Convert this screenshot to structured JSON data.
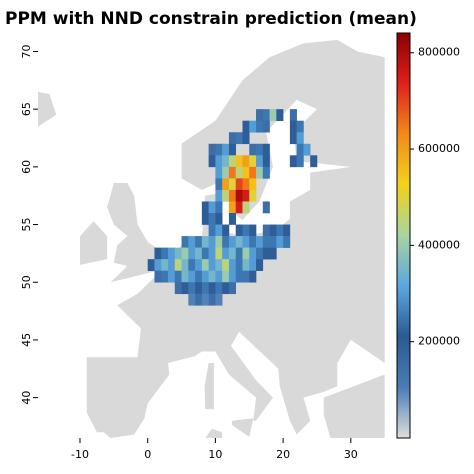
{
  "chart_data": {
    "type": "raster",
    "title": "PPM with NND constrain prediction (mean)",
    "x": [
      16,
      17,
      18,
      19,
      21,
      14,
      15,
      16,
      17,
      21,
      22,
      12,
      13,
      14,
      21,
      22,
      9,
      10,
      11,
      12,
      15,
      16,
      17,
      22,
      23,
      9,
      10,
      11,
      12,
      13,
      14,
      15,
      16,
      17,
      21,
      22,
      24,
      10,
      11,
      12,
      13,
      14,
      15,
      16,
      17,
      10,
      11,
      12,
      13,
      14,
      15,
      10,
      11,
      12,
      13,
      14,
      15,
      8,
      9,
      10,
      12,
      13,
      14,
      17,
      8,
      9,
      10,
      12,
      9,
      10,
      11,
      13,
      14,
      15,
      17,
      18,
      19,
      20,
      5,
      6,
      7,
      8,
      9,
      10,
      11,
      12,
      13,
      14,
      15,
      16,
      17,
      18,
      19,
      20,
      1,
      2,
      3,
      4,
      5,
      6,
      7,
      8,
      9,
      10,
      11,
      12,
      13,
      14,
      15,
      16,
      17,
      18,
      0,
      1,
      2,
      3,
      4,
      5,
      6,
      7,
      8,
      9,
      10,
      11,
      12,
      13,
      14,
      15,
      16,
      1,
      2,
      3,
      4,
      5,
      6,
      7,
      8,
      9,
      10,
      11,
      12,
      13,
      14,
      15,
      4,
      5,
      6,
      7,
      8,
      9,
      10,
      11,
      12,
      6,
      7,
      8,
      9,
      10
    ],
    "y": [
      64,
      64,
      64,
      64,
      64,
      63,
      63,
      63,
      63,
      63,
      63,
      62,
      62,
      62,
      62,
      62,
      61,
      61,
      61,
      61,
      61,
      61,
      61,
      61,
      61,
      60,
      60,
      60,
      60,
      60,
      60,
      60,
      60,
      60,
      60,
      60,
      60,
      59,
      59,
      59,
      59,
      59,
      59,
      59,
      59,
      58,
      58,
      58,
      58,
      58,
      58,
      57,
      57,
      57,
      57,
      57,
      57,
      56,
      56,
      56,
      56,
      56,
      56,
      56,
      55,
      55,
      55,
      55,
      54,
      54,
      54,
      54,
      54,
      54,
      54,
      54,
      54,
      54,
      53,
      53,
      53,
      53,
      53,
      53,
      53,
      53,
      53,
      53,
      53,
      53,
      53,
      53,
      53,
      53,
      52,
      52,
      52,
      52,
      52,
      52,
      52,
      52,
      52,
      52,
      52,
      52,
      52,
      52,
      52,
      52,
      52,
      52,
      51,
      51,
      51,
      51,
      51,
      51,
      51,
      51,
      51,
      51,
      51,
      51,
      51,
      51,
      51,
      51,
      51,
      50,
      50,
      50,
      50,
      50,
      50,
      50,
      50,
      50,
      50,
      50,
      50,
      50,
      50,
      50,
      49,
      49,
      49,
      49,
      49,
      49,
      49,
      49,
      49,
      48,
      48,
      48,
      48,
      48
    ],
    "values": [
      150000,
      250000,
      400000,
      200000,
      150000,
      200000,
      300000,
      250000,
      150000,
      200000,
      250000,
      150000,
      250000,
      200000,
      200000,
      300000,
      150000,
      250000,
      300000,
      200000,
      150000,
      250000,
      200000,
      250000,
      300000,
      200000,
      300000,
      350000,
      450000,
      550000,
      600000,
      500000,
      300000,
      200000,
      200000,
      250000,
      200000,
      300000,
      400000,
      650000,
      450000,
      550000,
      650000,
      400000,
      250000,
      250000,
      600000,
      500000,
      700000,
      650000,
      550000,
      300000,
      450000,
      650000,
      800000,
      750000,
      500000,
      200000,
      300000,
      250000,
      600000,
      750000,
      450000,
      150000,
      200000,
      250000,
      200000,
      200000,
      250000,
      300000,
      200000,
      200000,
      250000,
      200000,
      150000,
      200000,
      250000,
      200000,
      250000,
      300000,
      250000,
      350000,
      300000,
      400000,
      250000,
      300000,
      350000,
      300000,
      250000,
      300000,
      250000,
      250000,
      300000,
      250000,
      200000,
      250000,
      300000,
      350000,
      400000,
      300000,
      350000,
      250000,
      300000,
      450000,
      300000,
      350000,
      250000,
      400000,
      300000,
      250000,
      200000,
      200000,
      200000,
      300000,
      350000,
      300000,
      450000,
      350000,
      250000,
      300000,
      400000,
      300000,
      350000,
      450000,
      300000,
      250000,
      350000,
      300000,
      200000,
      150000,
      250000,
      300000,
      250000,
      350000,
      300000,
      250000,
      300000,
      350000,
      300000,
      400000,
      300000,
      250000,
      250000,
      200000,
      150000,
      200000,
      250000,
      200000,
      250000,
      200000,
      250000,
      200000,
      150000,
      100000,
      150000,
      100000,
      150000,
      100000
    ],
    "xlim": [
      -16.2,
      34.9
    ],
    "ylim": [
      36.5,
      71.6
    ],
    "xticks": [
      -10,
      0,
      10,
      20,
      30
    ],
    "yticks": [
      40,
      45,
      50,
      55,
      60,
      65,
      70
    ],
    "clim": [
      0,
      841000
    ],
    "cticks": [
      200000,
      400000,
      600000,
      800000
    ],
    "colors": [
      "#dedede",
      "#4a7db5",
      "#2b5a95",
      "#5ba7e0",
      "#a8d4a0",
      "#f2d21b",
      "#f28a1c",
      "#e0201c",
      "#8b0000"
    ],
    "land_color": "#d9d9d9"
  }
}
